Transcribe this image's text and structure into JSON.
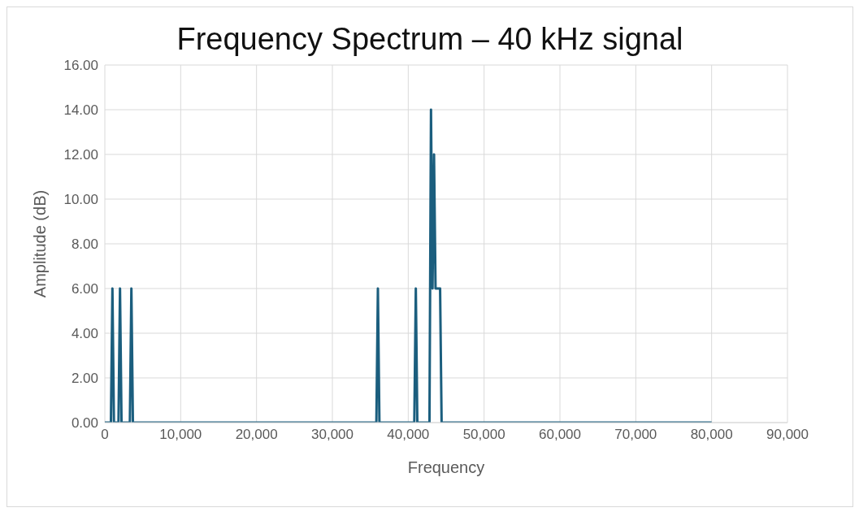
{
  "chart_data": {
    "type": "line",
    "title": "Frequency Spectrum – 40 kHz signal",
    "xlabel": "Frequency",
    "ylabel": "Amplitude (dB)",
    "x": [
      0,
      800,
      1000,
      1200,
      1800,
      2000,
      2200,
      3300,
      3500,
      3700,
      35800,
      36000,
      36200,
      40800,
      41000,
      41200,
      42600,
      42800,
      43000,
      43200,
      43400,
      43600,
      43800,
      44000,
      44200,
      44400,
      80000
    ],
    "series": [
      {
        "color": "#1b5e7e",
        "values": [
          0,
          0,
          6,
          0,
          0,
          6,
          0,
          0,
          6,
          0,
          0,
          6,
          0,
          0,
          6,
          0,
          0,
          0,
          14,
          6,
          12,
          6,
          6,
          6,
          6,
          0,
          0
        ]
      }
    ],
    "xlim": [
      0,
      90000
    ],
    "xticks": [
      {
        "value": 0,
        "label": "0"
      },
      {
        "value": 10000,
        "label": "10,000"
      },
      {
        "value": 20000,
        "label": "20,000"
      },
      {
        "value": 30000,
        "label": "30,000"
      },
      {
        "value": 40000,
        "label": "40,000"
      },
      {
        "value": 50000,
        "label": "50,000"
      },
      {
        "value": 60000,
        "label": "60,000"
      },
      {
        "value": 70000,
        "label": "70,000"
      },
      {
        "value": 80000,
        "label": "80,000"
      },
      {
        "value": 90000,
        "label": "90,000"
      }
    ],
    "ylim": [
      0,
      16
    ],
    "yticks": [
      {
        "value": 0,
        "label": "0.00"
      },
      {
        "value": 2,
        "label": "2.00"
      },
      {
        "value": 4,
        "label": "4.00"
      },
      {
        "value": 6,
        "label": "6.00"
      },
      {
        "value": 8,
        "label": "8.00"
      },
      {
        "value": 10,
        "label": "10.00"
      },
      {
        "value": 12,
        "label": "12.00"
      },
      {
        "value": 14,
        "label": "14.00"
      },
      {
        "value": 16,
        "label": "16.00"
      }
    ],
    "grid": true,
    "marker": "none",
    "line_style": "solid",
    "legend": false
  }
}
